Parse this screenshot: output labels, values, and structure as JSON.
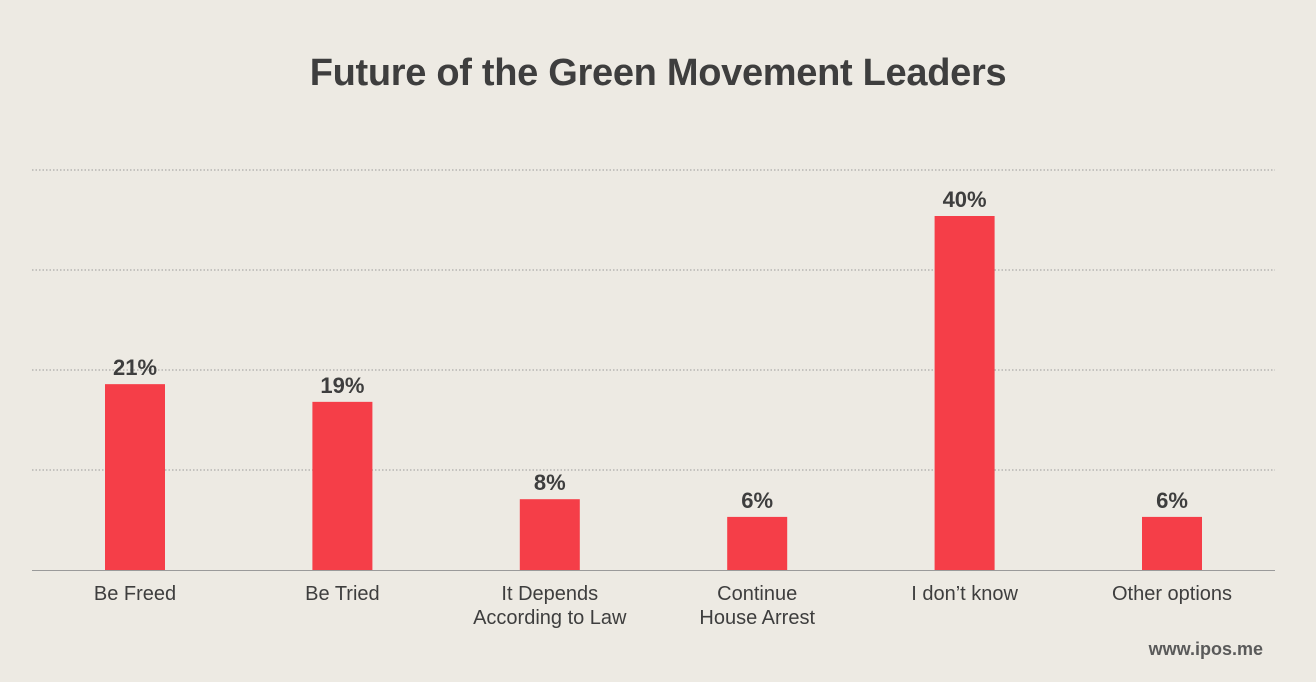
{
  "chart_data": {
    "type": "bar",
    "title": "Future of the Green Movement Leaders",
    "categories": [
      [
        "Be Freed"
      ],
      [
        "Be Tried"
      ],
      [
        "It Depends",
        "According to Law"
      ],
      [
        "Continue",
        "House Arrest"
      ],
      [
        "I don’t know"
      ],
      [
        "Other options"
      ]
    ],
    "values": [
      21,
      19,
      8,
      6,
      40,
      6
    ],
    "value_labels": [
      "21%",
      "19%",
      "8%",
      "6%",
      "40%",
      "6%"
    ],
    "ylim": [
      0,
      40
    ],
    "grid": true,
    "colors": {
      "bar": "#f53e48",
      "text": "#3e3e3e",
      "axis": "#9a9a9a",
      "grid": "#9a9a9a",
      "background": "#edeae3"
    }
  },
  "footer": {
    "source": "www.ipos.me"
  }
}
